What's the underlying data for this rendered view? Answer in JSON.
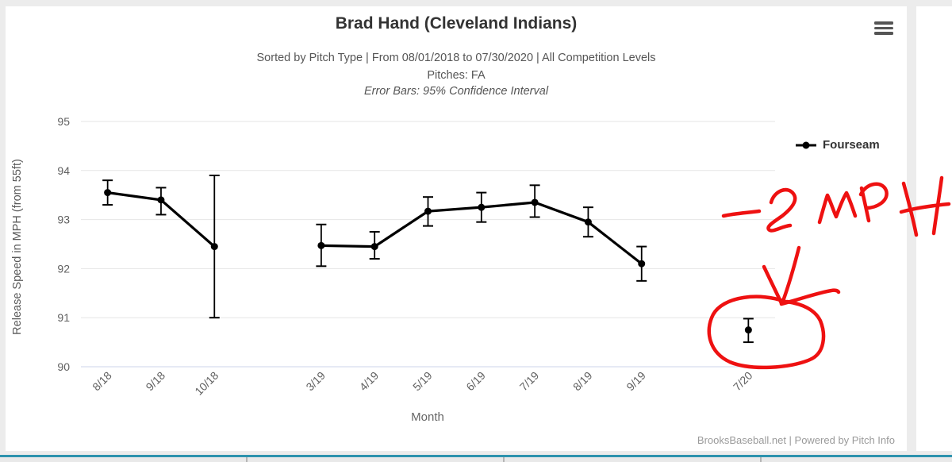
{
  "window": {
    "background": "#ececec",
    "panel_background": "#ffffff"
  },
  "header": {
    "title": "Brad Hand (Cleveland Indians)",
    "subtitle_line1": "Sorted by Pitch Type | From 08/01/2018 to 07/30/2020 | All Competition Levels",
    "subtitle_line2": "Pitches: FA",
    "subtitle_line3": "Error Bars: 95% Confidence Interval"
  },
  "menu": {
    "icon": "hamburger-menu-icon"
  },
  "legend": {
    "label": "Fourseam",
    "marker_color": "#000000",
    "position": "right"
  },
  "credits": "BrooksBaseball.net | Powered by Pitch Info",
  "annotation": {
    "label": "-2 MPH",
    "color": "#ee1111",
    "shapes": [
      "handwritten-text",
      "arrow-down",
      "circle-around-last-point"
    ],
    "target_point": "7/20"
  },
  "bottom_table": {
    "accent_color": "#2d93ae"
  },
  "chart_data": {
    "type": "line",
    "title": "Brad Hand (Cleveland Indians)",
    "xlabel": "Month",
    "ylabel": "Release Speed in MPH (from 55ft)",
    "ylim": [
      90,
      95
    ],
    "yticks": [
      90,
      91,
      92,
      93,
      94,
      95
    ],
    "grid": true,
    "error_bars": "95% Confidence Interval",
    "slot_count": 13,
    "series": [
      {
        "name": "Fourseam",
        "color": "#000000",
        "points": [
          {
            "month": "8/18",
            "slot": 0,
            "mph": 93.55,
            "ci_low": 93.3,
            "ci_high": 93.8
          },
          {
            "month": "9/18",
            "slot": 1,
            "mph": 93.4,
            "ci_low": 93.1,
            "ci_high": 93.65
          },
          {
            "month": "10/18",
            "slot": 2,
            "mph": 92.45,
            "ci_low": 91.0,
            "ci_high": 93.9
          },
          {
            "month": "3/19",
            "slot": 4,
            "mph": 92.47,
            "ci_low": 92.05,
            "ci_high": 92.9
          },
          {
            "month": "4/19",
            "slot": 5,
            "mph": 92.45,
            "ci_low": 92.2,
            "ci_high": 92.75
          },
          {
            "month": "5/19",
            "slot": 6,
            "mph": 93.17,
            "ci_low": 92.87,
            "ci_high": 93.46
          },
          {
            "month": "6/19",
            "slot": 7,
            "mph": 93.25,
            "ci_low": 92.95,
            "ci_high": 93.55
          },
          {
            "month": "7/19",
            "slot": 8,
            "mph": 93.35,
            "ci_low": 93.05,
            "ci_high": 93.7
          },
          {
            "month": "8/19",
            "slot": 9,
            "mph": 92.95,
            "ci_low": 92.65,
            "ci_high": 93.25
          },
          {
            "month": "9/19",
            "slot": 10,
            "mph": 92.1,
            "ci_low": 91.75,
            "ci_high": 92.45
          },
          {
            "month": "7/20",
            "slot": 12,
            "mph": 90.75,
            "ci_low": 90.5,
            "ci_high": 90.98
          }
        ]
      }
    ]
  }
}
